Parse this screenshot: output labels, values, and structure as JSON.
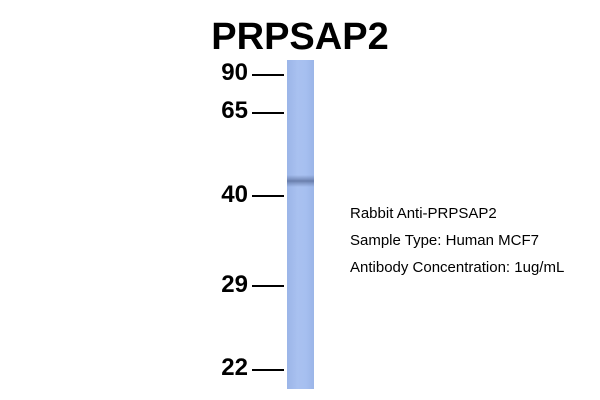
{
  "title": "PRPSAP2",
  "markers": [
    {
      "label": "90"
    },
    {
      "label": "65"
    },
    {
      "label": "40"
    },
    {
      "label": "29"
    },
    {
      "label": "22"
    }
  ],
  "info": {
    "line1": "Rabbit Anti-PRPSAP2",
    "line2": "Sample Type: Human MCF7",
    "line3": "Antibody Concentration: 1ug/mL"
  },
  "colors": {
    "lane": "#a6bff0",
    "band": "#5f73a0"
  }
}
